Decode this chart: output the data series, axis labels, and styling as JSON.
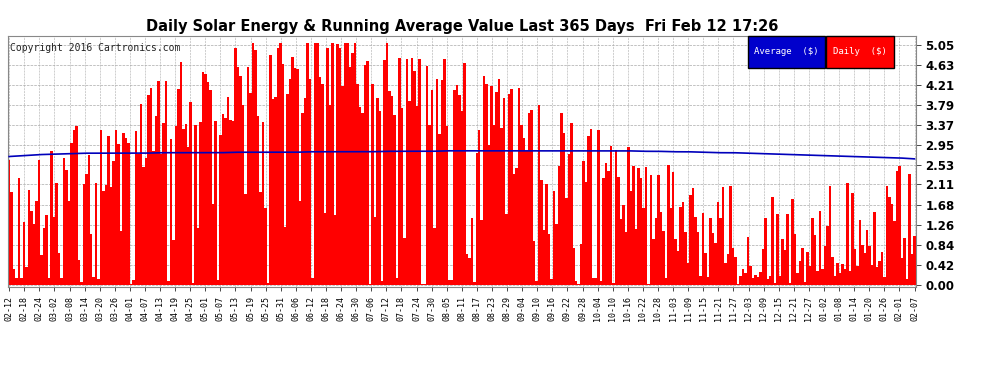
{
  "title": "Daily Solar Energy & Running Average Value Last 365 Days  Fri Feb 12 17:26",
  "copyright": "Copyright 2016 Cartronics.com",
  "yticks": [
    0.0,
    0.42,
    0.84,
    1.26,
    1.68,
    2.11,
    2.53,
    2.95,
    3.37,
    3.79,
    4.21,
    4.63,
    5.05
  ],
  "ymax": 5.25,
  "ymin": -0.05,
  "bar_color": "#ff0000",
  "avg_line_color": "#0000bb",
  "background_color": "#ffffff",
  "grid_color": "#aaaaaa",
  "legend_avg_bg": "#0000cc",
  "legend_daily_bg": "#ff0000",
  "legend_text_color": "#ffffff",
  "xtick_labels": [
    "02-12",
    "02-18",
    "02-24",
    "03-02",
    "03-08",
    "03-14",
    "03-20",
    "03-26",
    "04-01",
    "04-07",
    "04-13",
    "04-19",
    "04-25",
    "05-01",
    "05-07",
    "05-13",
    "05-19",
    "05-25",
    "05-31",
    "06-06",
    "06-12",
    "06-18",
    "06-24",
    "06-30",
    "07-06",
    "07-12",
    "07-18",
    "07-24",
    "07-30",
    "08-05",
    "08-11",
    "08-17",
    "08-23",
    "08-29",
    "09-04",
    "09-10",
    "09-16",
    "09-22",
    "09-28",
    "10-04",
    "10-10",
    "10-16",
    "10-22",
    "10-28",
    "11-03",
    "11-09",
    "11-15",
    "11-21",
    "11-27",
    "12-03",
    "12-09",
    "12-15",
    "12-21",
    "12-27",
    "01-02",
    "01-08",
    "01-14",
    "01-20",
    "01-26",
    "02-01",
    "02-07"
  ],
  "avg_line_values": [
    2.7,
    2.72,
    2.74,
    2.75,
    2.76,
    2.77,
    2.77,
    2.77,
    2.77,
    2.77,
    2.78,
    2.78,
    2.78,
    2.78,
    2.78,
    2.79,
    2.79,
    2.79,
    2.79,
    2.79,
    2.8,
    2.8,
    2.8,
    2.8,
    2.8,
    2.81,
    2.81,
    2.81,
    2.81,
    2.82,
    2.82,
    2.82,
    2.82,
    2.82,
    2.82,
    2.82,
    2.82,
    2.82,
    2.82,
    2.82,
    2.82,
    2.82,
    2.81,
    2.81,
    2.8,
    2.8,
    2.79,
    2.78,
    2.78,
    2.77,
    2.76,
    2.75,
    2.74,
    2.73,
    2.72,
    2.71,
    2.7,
    2.69,
    2.68,
    2.67,
    2.65
  ]
}
